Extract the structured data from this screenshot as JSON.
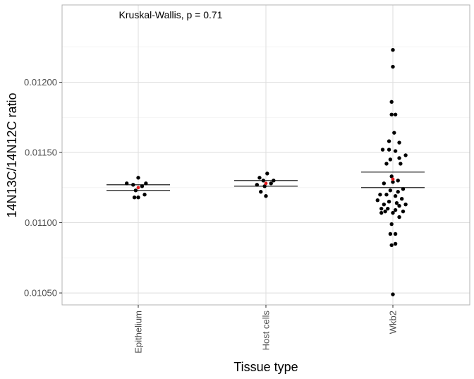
{
  "chart_data": {
    "type": "scatter",
    "title": "",
    "xlabel": "Tissue type",
    "ylabel": "14N13C/14N12C ratio",
    "categories": [
      "Epithelium",
      "Host cells",
      "Wkb2"
    ],
    "yticks": [
      "0.01050",
      "0.01100",
      "0.01150",
      "0.01200"
    ],
    "ylim": [
      0.010415,
      0.01255
    ],
    "annotation": "Kruskal-Wallis, p = 0.71",
    "grid": true,
    "colors": {
      "point": "#000000",
      "mean": "#e41a1c",
      "grid": "#dedede",
      "border": "#b3b3b3"
    },
    "groups": [
      {
        "name": "Epithelium",
        "points": [
          {
            "dx": -0.09,
            "y": 0.01128
          },
          {
            "dx": 0.0,
            "y": 0.01132
          },
          {
            "dx": 0.06,
            "y": 0.01128
          },
          {
            "dx": -0.04,
            "y": 0.01127
          },
          {
            "dx": 0.03,
            "y": 0.01126
          },
          {
            "dx": -0.02,
            "y": 0.01123
          },
          {
            "dx": 0.05,
            "y": 0.0112
          },
          {
            "dx": -0.03,
            "y": 0.01118
          },
          {
            "dx": 0.0,
            "y": 0.01118
          }
        ],
        "mean": 0.01125,
        "ci": [
          0.01123,
          0.01127
        ]
      },
      {
        "name": "Host cells",
        "points": [
          {
            "dx": 0.01,
            "y": 0.01135
          },
          {
            "dx": -0.05,
            "y": 0.01132
          },
          {
            "dx": -0.02,
            "y": 0.0113
          },
          {
            "dx": 0.06,
            "y": 0.0113
          },
          {
            "dx": -0.07,
            "y": 0.01127
          },
          {
            "dx": 0.04,
            "y": 0.01128
          },
          {
            "dx": -0.01,
            "y": 0.01126
          },
          {
            "dx": -0.04,
            "y": 0.01122
          },
          {
            "dx": 0.0,
            "y": 0.01119
          }
        ],
        "mean": 0.01128,
        "ci": [
          0.01126,
          0.0113
        ]
      },
      {
        "name": "Wkb2",
        "points": [
          {
            "dx": 0.0,
            "y": 0.01223
          },
          {
            "dx": 0.0,
            "y": 0.01211
          },
          {
            "dx": -0.01,
            "y": 0.01186
          },
          {
            "dx": -0.01,
            "y": 0.01177
          },
          {
            "dx": 0.02,
            "y": 0.01177
          },
          {
            "dx": 0.01,
            "y": 0.01164
          },
          {
            "dx": -0.03,
            "y": 0.01158
          },
          {
            "dx": 0.05,
            "y": 0.01157
          },
          {
            "dx": -0.08,
            "y": 0.01152
          },
          {
            "dx": -0.03,
            "y": 0.01152
          },
          {
            "dx": 0.02,
            "y": 0.01151
          },
          {
            "dx": 0.1,
            "y": 0.01148
          },
          {
            "dx": 0.05,
            "y": 0.01146
          },
          {
            "dx": -0.02,
            "y": 0.01145
          },
          {
            "dx": -0.05,
            "y": 0.01142
          },
          {
            "dx": 0.06,
            "y": 0.01142
          },
          {
            "dx": -0.01,
            "y": 0.01133
          },
          {
            "dx": 0.04,
            "y": 0.0113
          },
          {
            "dx": 0.0,
            "y": 0.01129
          },
          {
            "dx": -0.07,
            "y": 0.01128
          },
          {
            "dx": 0.08,
            "y": 0.01124
          },
          {
            "dx": -0.02,
            "y": 0.01123
          },
          {
            "dx": 0.04,
            "y": 0.01122
          },
          {
            "dx": -0.1,
            "y": 0.0112
          },
          {
            "dx": -0.05,
            "y": 0.0112
          },
          {
            "dx": 0.02,
            "y": 0.01119
          },
          {
            "dx": 0.07,
            "y": 0.01117
          },
          {
            "dx": -0.12,
            "y": 0.01116
          },
          {
            "dx": -0.03,
            "y": 0.01115
          },
          {
            "dx": 0.03,
            "y": 0.01114
          },
          {
            "dx": -0.07,
            "y": 0.01113
          },
          {
            "dx": 0.1,
            "y": 0.01113
          },
          {
            "dx": 0.05,
            "y": 0.01112
          },
          {
            "dx": -0.09,
            "y": 0.0111
          },
          {
            "dx": -0.04,
            "y": 0.0111
          },
          {
            "dx": 0.02,
            "y": 0.01109
          },
          {
            "dx": -0.06,
            "y": 0.01108
          },
          {
            "dx": 0.08,
            "y": 0.01108
          },
          {
            "dx": 0.0,
            "y": 0.01107
          },
          {
            "dx": -0.09,
            "y": 0.01107
          },
          {
            "dx": 0.05,
            "y": 0.01104
          },
          {
            "dx": -0.01,
            "y": 0.01099
          },
          {
            "dx": 0.02,
            "y": 0.01092
          },
          {
            "dx": -0.02,
            "y": 0.01092
          },
          {
            "dx": 0.02,
            "y": 0.01085
          },
          {
            "dx": -0.01,
            "y": 0.01084
          },
          {
            "dx": 0.0,
            "y": 0.01049
          }
        ],
        "mean": 0.01131,
        "ci": [
          0.01125,
          0.01136
        ]
      }
    ]
  }
}
